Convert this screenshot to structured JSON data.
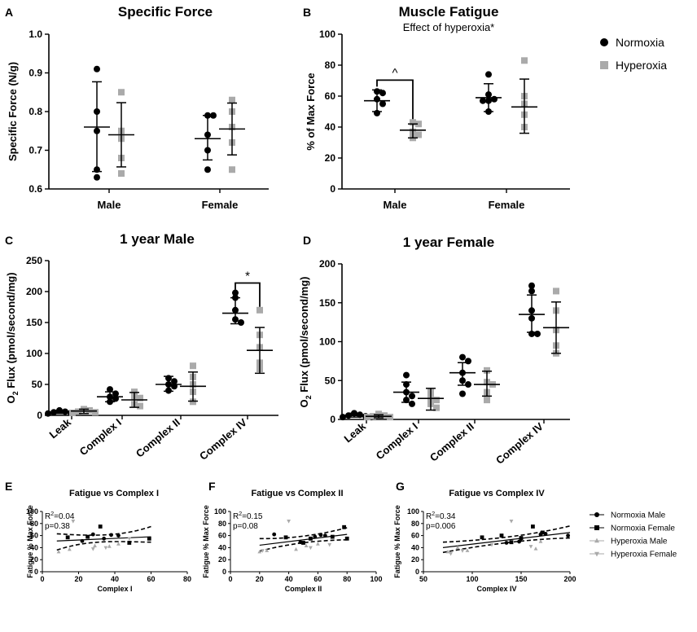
{
  "colors": {
    "normoxia": "#000000",
    "hyperoxia": "#aaaaaa"
  },
  "legend_top": [
    {
      "label": "Normoxia",
      "marker": "circle",
      "color": "#000000"
    },
    {
      "label": "Hyperoxia",
      "marker": "square",
      "color": "#aaaaaa"
    }
  ],
  "legend_bottom": [
    {
      "label": "Normoxia Male",
      "marker": "circle",
      "color": "#000000"
    },
    {
      "label": "Normoxia Female",
      "marker": "square",
      "color": "#000000"
    },
    {
      "label": "Hyperoxia Male",
      "marker": "triangle-up",
      "color": "#aaaaaa"
    },
    {
      "label": "Hyperoxia Female",
      "marker": "triangle-down",
      "color": "#aaaaaa"
    }
  ],
  "chart_data": [
    {
      "id": "A",
      "type": "scatter",
      "title": "Specific Force",
      "subtitle": "",
      "ylabel": "Specific Force (N/g)",
      "ylim": [
        0.6,
        1.0
      ],
      "yticks": [
        0.6,
        0.7,
        0.8,
        0.9,
        1.0
      ],
      "ytick_labels": [
        "0.6",
        "0.7",
        "0.8",
        "0.9",
        "1.0"
      ],
      "categories": [
        "Male",
        "Female"
      ],
      "series": [
        {
          "name": "Normoxia",
          "marker": "circle",
          "color": "#000000",
          "points": [
            [
              0.91,
              0.8,
              0.75,
              0.65,
              0.63
            ],
            [
              0.79,
              0.79,
              0.74,
              0.7,
              0.65
            ]
          ],
          "mean": [
            0.76,
            0.73
          ],
          "err": [
            [
              0.645,
              0.877
            ],
            [
              0.675,
              0.79
            ]
          ]
        },
        {
          "name": "Hyperoxia",
          "marker": "square",
          "color": "#aaaaaa",
          "points": [
            [
              0.85,
              0.75,
              0.73,
              0.68,
              0.64
            ],
            [
              0.83,
              0.8,
              0.76,
              0.72,
              0.65
            ]
          ],
          "mean": [
            0.74,
            0.755
          ],
          "err": [
            [
              0.657,
              0.823
            ],
            [
              0.688,
              0.822
            ]
          ]
        }
      ],
      "annotations": []
    },
    {
      "id": "B",
      "type": "scatter",
      "title": "Muscle Fatigue",
      "subtitle": "Effect of hyperoxia*",
      "ylabel": "% of Max Force",
      "ylim": [
        0,
        100
      ],
      "yticks": [
        0,
        20,
        40,
        60,
        80,
        100
      ],
      "ytick_labels": [
        "0",
        "20",
        "40",
        "60",
        "80",
        "100"
      ],
      "categories": [
        "Male",
        "Female"
      ],
      "series": [
        {
          "name": "Normoxia",
          "marker": "circle",
          "color": "#000000",
          "points": [
            [
              63,
              62,
              55,
              49,
              58
            ],
            [
              74,
              61,
              58,
              50,
              57,
              57
            ]
          ],
          "mean": [
            57,
            59
          ],
          "err": [
            [
              50,
              64
            ],
            [
              50,
              68
            ]
          ]
        },
        {
          "name": "Hyperoxia",
          "marker": "square",
          "color": "#aaaaaa",
          "points": [
            [
              43,
              42,
              37,
              35,
              33
            ],
            [
              83,
              60,
              55,
              48,
              40
            ]
          ],
          "mean": [
            38,
            53
          ],
          "err": [
            [
              33,
              42
            ],
            [
              36,
              71
            ]
          ]
        }
      ],
      "annotations": [
        {
          "text": "^",
          "between": [
            0,
            0
          ]
        }
      ]
    },
    {
      "id": "C",
      "type": "scatter",
      "title": "1 year Male",
      "subtitle": "",
      "ylabel": "O2 Flux (pmol/second/mg)",
      "ylabel_main": "O",
      "ylabel_sub": "2",
      "ylabel_rest": " Flux (pmol/second/mg)",
      "ylim": [
        0,
        250
      ],
      "yticks": [
        0,
        50,
        100,
        150,
        200,
        250
      ],
      "ytick_labels": [
        "0",
        "50",
        "100",
        "150",
        "200",
        "250"
      ],
      "categories": [
        "Leak",
        "Complex I",
        "Complex II",
        "Complex IV"
      ],
      "series": [
        {
          "name": "Normoxia",
          "marker": "circle",
          "color": "#000000",
          "points": [
            [
              8,
              6,
              5,
              4,
              3
            ],
            [
              42,
              35,
              30,
              27,
              22
            ],
            [
              60,
              55,
              50,
              47,
              40
            ],
            [
              198,
              190,
              170,
              155,
              150
            ]
          ],
          "mean": [
            5,
            30,
            50,
            165
          ],
          "err": [
            [
              3,
              8
            ],
            [
              22,
              38
            ],
            [
              39,
              63
            ],
            [
              148,
              190
            ]
          ]
        },
        {
          "name": "Hyperoxia",
          "marker": "square",
          "color": "#aaaaaa",
          "points": [
            [
              10,
              8,
              6,
              5,
              4
            ],
            [
              38,
              30,
              28,
              18,
              15
            ],
            [
              80,
              62,
              50,
              38,
              22
            ],
            [
              170,
              130,
              110,
              85,
              75
            ]
          ],
          "mean": [
            7,
            25,
            47,
            105
          ],
          "err": [
            [
              3,
              10
            ],
            [
              13,
              37
            ],
            [
              23,
              70
            ],
            [
              68,
              142
            ]
          ]
        }
      ],
      "annotations": [
        {
          "text": "*",
          "between": [
            3,
            3
          ]
        }
      ]
    },
    {
      "id": "D",
      "type": "scatter",
      "title": "1 year Female",
      "subtitle": "",
      "ylabel": "O2 Flux (pmol/second/mg)",
      "ylabel_main": "O",
      "ylabel_sub": "2",
      "ylabel_rest": " Flux (pmol/second/mg)",
      "ylim": [
        0,
        200
      ],
      "yticks": [
        0,
        50,
        100,
        150,
        200
      ],
      "ytick_labels": [
        "0",
        "50",
        "100",
        "150",
        "200"
      ],
      "categories": [
        "Leak",
        "Complex I",
        "Complex II",
        "Complex IV"
      ],
      "series": [
        {
          "name": "Normoxia",
          "marker": "circle",
          "color": "#000000",
          "points": [
            [
              8,
              6,
              5,
              4,
              3,
              3
            ],
            [
              57,
              45,
              35,
              30,
              25,
              20
            ],
            [
              80,
              75,
              60,
              50,
              45,
              33
            ],
            [
              172,
              165,
              140,
              130,
              110,
              110
            ]
          ],
          "mean": [
            5,
            35,
            60,
            135
          ],
          "err": [
            [
              3,
              8
            ],
            [
              22,
              48
            ],
            [
              44,
              73
            ],
            [
              112,
              160
            ]
          ]
        },
        {
          "name": "Hyperoxia",
          "marker": "square",
          "color": "#aaaaaa",
          "points": [
            [
              7,
              5,
              4,
              3,
              3
            ],
            [
              35,
              28,
              25,
              20,
              15
            ],
            [
              63,
              48,
              45,
              35,
              25
            ],
            [
              165,
              140,
              115,
              95,
              85
            ]
          ],
          "mean": [
            4,
            27,
            45,
            118
          ],
          "err": [
            [
              2,
              6
            ],
            [
              12,
              40
            ],
            [
              30,
              62
            ],
            [
              85,
              151
            ]
          ]
        }
      ],
      "annotations": []
    },
    {
      "id": "E",
      "type": "scatter",
      "title": "Fatigue vs Complex I",
      "subtitle": "",
      "xlabel": "Complex I",
      "ylabel": "Fatigue % Max Force",
      "xlim": [
        0,
        80
      ],
      "ylim": [
        0,
        100
      ],
      "xticks": [
        0,
        20,
        40,
        60,
        80
      ],
      "yticks": [
        0,
        20,
        40,
        60,
        80,
        100
      ],
      "stats": [
        "R2=0.04",
        "p=0.38"
      ],
      "fit": {
        "x": [
          8,
          60
        ],
        "y": [
          51,
          58
        ],
        "ci_low": [
          36,
          49
        ],
        "ci_high": [
          63,
          75
        ]
      },
      "series": [
        {
          "name": "Normoxia Male",
          "marker": "circle",
          "color": "#000000",
          "x": [
            22,
            28,
            34,
            38,
            42
          ],
          "y": [
            51,
            62,
            55,
            61,
            60
          ]
        },
        {
          "name": "Normoxia Female",
          "marker": "square",
          "color": "#000000",
          "x": [
            14,
            25,
            32,
            48,
            59
          ],
          "y": [
            57,
            58,
            75,
            48,
            55
          ]
        },
        {
          "name": "Hyperoxia Male",
          "marker": "triangle-up",
          "color": "#aaaaaa",
          "x": [
            9,
            15,
            29,
            37,
            42
          ],
          "y": [
            33,
            37,
            43,
            42,
            46
          ]
        },
        {
          "name": "Hyperoxia Female",
          "marker": "triangle-down",
          "color": "#aaaaaa",
          "x": [
            17,
            28,
            35,
            48
          ],
          "y": [
            84,
            38,
            40,
            55
          ]
        }
      ]
    },
    {
      "id": "F",
      "type": "scatter",
      "title": "Fatigue vs Complex II",
      "subtitle": "",
      "xlabel": "Complex II",
      "ylabel": "Fatigue % Max Force",
      "xlim": [
        0,
        100
      ],
      "ylim": [
        0,
        100
      ],
      "xticks": [
        0,
        20,
        40,
        60,
        80,
        100
      ],
      "yticks": [
        0,
        20,
        40,
        60,
        80,
        100
      ],
      "stats": [
        "R2=0.15",
        "p=0.08"
      ],
      "fit": {
        "x": [
          20,
          80
        ],
        "y": [
          44,
          62
        ],
        "ci_low": [
          34,
          53
        ],
        "ci_high": [
          55,
          73
        ]
      },
      "series": [
        {
          "name": "Normoxia Male",
          "marker": "circle",
          "color": "#000000",
          "x": [
            30,
            48,
            58,
            62,
            65
          ],
          "y": [
            62,
            49,
            58,
            61,
            60
          ]
        },
        {
          "name": "Normoxia Female",
          "marker": "square",
          "color": "#000000",
          "x": [
            38,
            50,
            55,
            70,
            78,
            80
          ],
          "y": [
            57,
            48,
            55,
            58,
            74,
            55
          ]
        },
        {
          "name": "Hyperoxia Male",
          "marker": "triangle-up",
          "color": "#aaaaaa",
          "x": [
            20,
            25,
            45,
            52,
            60
          ],
          "y": [
            33,
            35,
            37,
            43,
            46
          ]
        },
        {
          "name": "Hyperoxia Female",
          "marker": "triangle-down",
          "color": "#aaaaaa",
          "x": [
            22,
            40,
            55,
            68
          ],
          "y": [
            35,
            84,
            40,
            45
          ]
        }
      ]
    },
    {
      "id": "G",
      "type": "scatter",
      "title": "Fatigue vs Complex IV",
      "subtitle": "",
      "xlabel": "Complex IV",
      "ylabel": "Fatigue % Max Force",
      "xlim": [
        50,
        200
      ],
      "ylim": [
        0,
        100
      ],
      "xticks": [
        50,
        100,
        150,
        200
      ],
      "yticks": [
        0,
        20,
        40,
        60,
        80,
        100
      ],
      "stats": [
        "R2=0.34",
        "p=0.006"
      ],
      "fit": {
        "x": [
          70,
          200
        ],
        "y": [
          40,
          65
        ],
        "ci_low": [
          32,
          56
        ],
        "ci_high": [
          49,
          76
        ]
      },
      "series": [
        {
          "name": "Normoxia Male",
          "marker": "circle",
          "color": "#000000",
          "x": [
            135,
            148,
            150,
            170,
            175,
            198
          ],
          "y": [
            48,
            50,
            55,
            62,
            63,
            60
          ]
        },
        {
          "name": "Normoxia Female",
          "marker": "square",
          "color": "#000000",
          "x": [
            110,
            130,
            140,
            150,
            162,
            172
          ],
          "y": [
            57,
            60,
            49,
            56,
            75,
            65
          ]
        },
        {
          "name": "Hyperoxia Male",
          "marker": "triangle-up",
          "color": "#aaaaaa",
          "x": [
            75,
            85,
            95,
            165,
            170
          ],
          "y": [
            33,
            40,
            35,
            38,
            50
          ]
        },
        {
          "name": "Hyperoxia Female",
          "marker": "triangle-down",
          "color": "#aaaaaa",
          "x": [
            78,
            90,
            120,
            140,
            160
          ],
          "y": [
            30,
            35,
            45,
            84,
            42
          ]
        }
      ]
    }
  ]
}
